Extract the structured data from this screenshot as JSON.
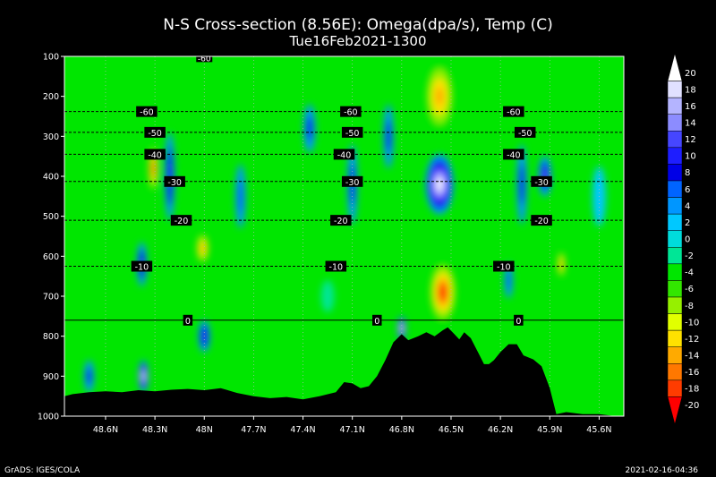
{
  "chart_data": {
    "type": "heatmap",
    "title": "N-S Cross-section (8.56E): Omega(dpa/s), Temp (C)",
    "subtitle": "Tue16Feb2021-1300",
    "y_ticks": [
      "100",
      "200",
      "300",
      "400",
      "500",
      "600",
      "700",
      "800",
      "900",
      "1000"
    ],
    "x_ticks": [
      "48.6N",
      "48.3N",
      "48N",
      "47.7N",
      "47.4N",
      "47.1N",
      "46.8N",
      "46.5N",
      "46.2N",
      "45.9N",
      "45.6N"
    ],
    "x_tick_values": [
      48.6,
      48.3,
      48.0,
      47.7,
      47.4,
      47.1,
      46.8,
      46.5,
      46.2,
      45.9,
      45.6
    ],
    "ylim": [
      100,
      1000
    ],
    "xlim": [
      48.85,
      45.45
    ],
    "colorbar": {
      "labels": [
        "20",
        "18",
        "16",
        "14",
        "12",
        "10",
        "8",
        "6",
        "4",
        "2",
        "0",
        "-2",
        "-4",
        "-6",
        "-8",
        "-10",
        "-12",
        "-14",
        "-16",
        "-18",
        "-20"
      ],
      "colors": [
        "#ffffff",
        "#e1e1ff",
        "#b4b4ff",
        "#8c8cff",
        "#4646ff",
        "#1e1eff",
        "#0000e6",
        "#0064ff",
        "#0096ff",
        "#00c8ff",
        "#00dcdc",
        "#00e696",
        "#00e600",
        "#32e600",
        "#96f000",
        "#e1ff00",
        "#ffe100",
        "#ffaa00",
        "#ff7800",
        "#ff3c00",
        "#ff0000"
      ]
    },
    "isotherms": [
      {
        "label": "-60",
        "p": 238,
        "labels_x": [
          48.35,
          47.11,
          46.12
        ]
      },
      {
        "label": "-50",
        "p": 290,
        "labels_x": [
          48.3,
          47.1,
          46.05
        ]
      },
      {
        "label": "-40",
        "p": 345,
        "labels_x": [
          48.3,
          47.15,
          46.12
        ]
      },
      {
        "label": "-30",
        "p": 413,
        "labels_x": [
          48.18,
          47.1,
          45.95
        ]
      },
      {
        "label": "-20",
        "p": 510,
        "labels_x": [
          48.14,
          47.17,
          45.95
        ]
      },
      {
        "label": "-10",
        "p": 625,
        "labels_x": [
          48.38,
          47.2,
          46.18
        ]
      },
      {
        "label": "0",
        "p": 760,
        "labels_x": [
          48.1,
          46.95,
          46.09
        ]
      }
    ],
    "top_label": {
      "label": "-60",
      "p": 103,
      "x": 48.0
    },
    "omega_features": [
      {
        "x": 46.57,
        "p": 200,
        "w": 0.18,
        "h": 180,
        "v": -14
      },
      {
        "x": 46.57,
        "p": 420,
        "w": 0.17,
        "h": 150,
        "v": 20
      },
      {
        "x": 46.55,
        "p": 690,
        "w": 0.17,
        "h": 160,
        "v": -20
      },
      {
        "x": 46.8,
        "p": 780,
        "w": 0.05,
        "h": 60,
        "v": 20
      },
      {
        "x": 48.31,
        "p": 380,
        "w": 0.06,
        "h": 120,
        "v": -18
      },
      {
        "x": 48.21,
        "p": 400,
        "w": 0.06,
        "h": 220,
        "v": 10
      },
      {
        "x": 48.38,
        "p": 620,
        "w": 0.06,
        "h": 110,
        "v": 10
      },
      {
        "x": 48.01,
        "p": 580,
        "w": 0.08,
        "h": 80,
        "v": -14
      },
      {
        "x": 48.37,
        "p": 900,
        "w": 0.06,
        "h": 80,
        "v": 18
      },
      {
        "x": 48.0,
        "p": 800,
        "w": 0.07,
        "h": 80,
        "v": 10
      },
      {
        "x": 45.93,
        "p": 400,
        "w": 0.08,
        "h": 100,
        "v": 12
      },
      {
        "x": 46.07,
        "p": 420,
        "w": 0.06,
        "h": 200,
        "v": 8
      },
      {
        "x": 45.83,
        "p": 620,
        "w": 0.05,
        "h": 70,
        "v": -14
      },
      {
        "x": 46.15,
        "p": 660,
        "w": 0.05,
        "h": 90,
        "v": 6
      },
      {
        "x": 47.1,
        "p": 420,
        "w": 0.06,
        "h": 200,
        "v": 8
      },
      {
        "x": 47.58,
        "p": 640,
        "w": 0.07,
        "h": 80,
        "v": -4
      },
      {
        "x": 47.78,
        "p": 450,
        "w": 0.06,
        "h": 160,
        "v": 6
      },
      {
        "x": 47.36,
        "p": 280,
        "w": 0.07,
        "h": 120,
        "v": 8
      },
      {
        "x": 48.7,
        "p": 900,
        "w": 0.06,
        "h": 80,
        "v": 8
      },
      {
        "x": 46.88,
        "p": 300,
        "w": 0.06,
        "h": 160,
        "v": 8
      },
      {
        "x": 47.25,
        "p": 700,
        "w": 0.08,
        "h": 80,
        "v": -2
      },
      {
        "x": 45.6,
        "p": 450,
        "w": 0.08,
        "h": 150,
        "v": 2
      }
    ],
    "terrain": [
      [
        48.85,
        950
      ],
      [
        48.8,
        945
      ],
      [
        48.7,
        940
      ],
      [
        48.6,
        938
      ],
      [
        48.5,
        940
      ],
      [
        48.4,
        935
      ],
      [
        48.3,
        938
      ],
      [
        48.2,
        934
      ],
      [
        48.1,
        932
      ],
      [
        48.0,
        935
      ],
      [
        47.9,
        930
      ],
      [
        47.8,
        942
      ],
      [
        47.7,
        950
      ],
      [
        47.6,
        955
      ],
      [
        47.5,
        952
      ],
      [
        47.4,
        958
      ],
      [
        47.3,
        950
      ],
      [
        47.2,
        940
      ],
      [
        47.15,
        915
      ],
      [
        47.1,
        918
      ],
      [
        47.05,
        930
      ],
      [
        47.0,
        925
      ],
      [
        46.95,
        900
      ],
      [
        46.9,
        860
      ],
      [
        46.85,
        815
      ],
      [
        46.8,
        795
      ],
      [
        46.76,
        810
      ],
      [
        46.7,
        800
      ],
      [
        46.65,
        790
      ],
      [
        46.6,
        800
      ],
      [
        46.55,
        785
      ],
      [
        46.52,
        778
      ],
      [
        46.48,
        795
      ],
      [
        46.45,
        808
      ],
      [
        46.42,
        790
      ],
      [
        46.38,
        805
      ],
      [
        46.33,
        845
      ],
      [
        46.3,
        870
      ],
      [
        46.27,
        870
      ],
      [
        46.24,
        860
      ],
      [
        46.2,
        840
      ],
      [
        46.15,
        820
      ],
      [
        46.1,
        820
      ],
      [
        46.06,
        848
      ],
      [
        46.0,
        858
      ],
      [
        45.95,
        875
      ],
      [
        45.9,
        930
      ],
      [
        45.86,
        995
      ],
      [
        45.8,
        990
      ],
      [
        45.7,
        995
      ],
      [
        45.6,
        995
      ],
      [
        45.5,
        1000
      ],
      [
        45.45,
        1000
      ]
    ]
  },
  "footer": {
    "left": "GrADS: IGES/COLA",
    "right": "2021-02-16-04:36"
  }
}
